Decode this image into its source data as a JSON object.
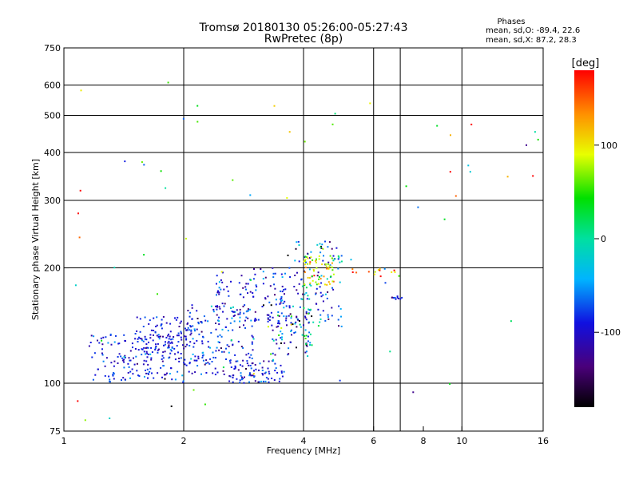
{
  "chart_data": {
    "type": "scatter",
    "title": "Tromsø 20180130 05:26:00-05:27:43",
    "subtitle": "RwPretec (8p)",
    "xlabel": "Frequency [MHz]",
    "ylabel": "Stationary phase Virtual Height [km]",
    "x_scale": "log",
    "y_scale": "log",
    "xlim": [
      1,
      16
    ],
    "ylim": [
      75,
      750
    ],
    "x_ticks": [
      1,
      2,
      4,
      6,
      8,
      10,
      16
    ],
    "x_tick_labels": [
      "1",
      "2",
      "4",
      "6",
      "8",
      "10",
      "16"
    ],
    "x_grid": [
      2,
      4,
      6,
      7,
      10
    ],
    "y_ticks": [
      75,
      100,
      200,
      300,
      400,
      500,
      600,
      750
    ],
    "y_tick_labels": [
      "75",
      "100",
      "200",
      "300",
      "400",
      "500",
      "600",
      "750"
    ],
    "grid": true,
    "colorbar": {
      "label": "[deg]",
      "range": [
        -180,
        180
      ],
      "ticks": [
        -100,
        0,
        100
      ],
      "tick_labels": [
        "-100",
        "0",
        "100"
      ]
    },
    "stats": {
      "heading": "Phases",
      "line_0": "mean, sd,O: -89.4, 22.6",
      "line_x": "mean, sd,X:  87.2, 28.3"
    },
    "clusters": [
      {
        "fmin": 1.15,
        "fmax": 2.0,
        "hmin": 100,
        "hmax": 135,
        "n": 170,
        "phase_mean": -89,
        "phase_sd": 22
      },
      {
        "fmin": 1.5,
        "fmax": 2.1,
        "hmin": 120,
        "hmax": 150,
        "n": 90,
        "phase_mean": -95,
        "phase_sd": 20
      },
      {
        "fmin": 2.0,
        "fmax": 3.0,
        "hmin": 105,
        "hmax": 160,
        "n": 170,
        "phase_mean": -85,
        "phase_sd": 28
      },
      {
        "fmin": 2.6,
        "fmax": 3.6,
        "hmin": 100,
        "hmax": 115,
        "n": 80,
        "phase_mean": -90,
        "phase_sd": 22
      },
      {
        "fmin": 2.4,
        "fmax": 3.8,
        "hmin": 140,
        "hmax": 200,
        "n": 130,
        "phase_mean": -88,
        "phase_sd": 25
      },
      {
        "fmin": 3.3,
        "fmax": 4.2,
        "hmin": 115,
        "hmax": 160,
        "n": 80,
        "phase_mean": -60,
        "phase_sd": 60
      },
      {
        "fmin": 3.8,
        "fmax": 5.0,
        "hmin": 140,
        "hmax": 235,
        "n": 120,
        "phase_mean": -70,
        "phase_sd": 55
      },
      {
        "fmin": 4.0,
        "fmax": 4.8,
        "hmin": 180,
        "hmax": 215,
        "n": 60,
        "phase_mean": 90,
        "phase_sd": 30
      },
      {
        "fmin": 6.6,
        "fmax": 7.1,
        "hmin": 165,
        "hmax": 170,
        "n": 10,
        "phase_mean": -85,
        "phase_sd": 20
      },
      {
        "fmin": 5.3,
        "fmax": 7.0,
        "hmin": 190,
        "hmax": 200,
        "n": 14,
        "phase_mean": 120,
        "phase_sd": 40
      },
      {
        "fmin": 1.0,
        "fmax": 16.0,
        "hmin": 80,
        "hmax": 620,
        "n": 70,
        "phase_mean": 0,
        "phase_sd": 100
      }
    ]
  }
}
